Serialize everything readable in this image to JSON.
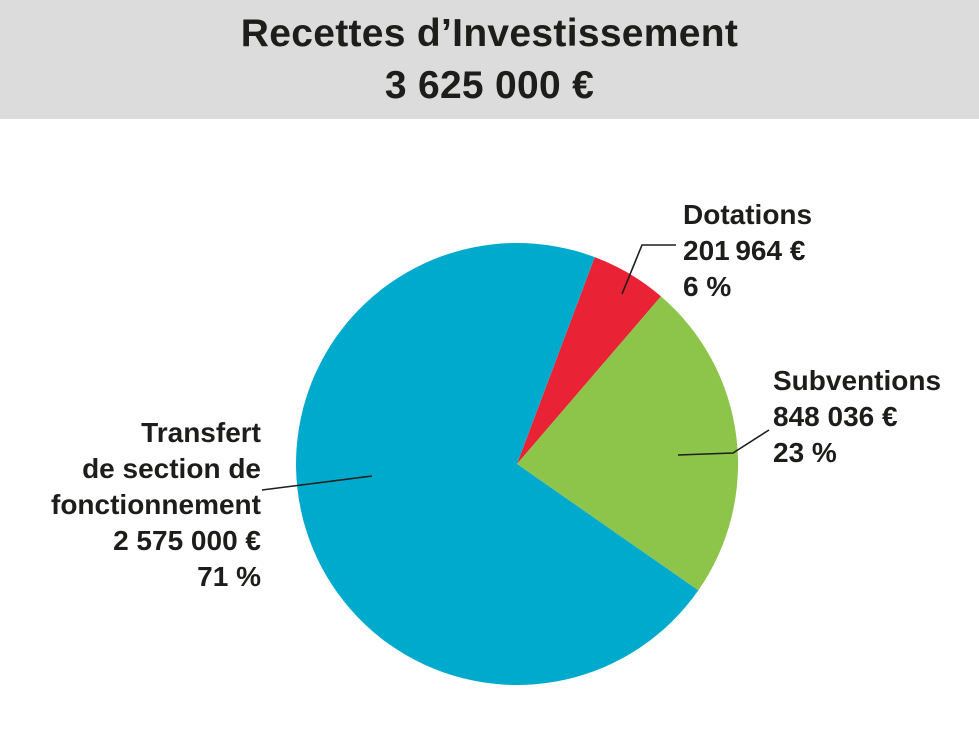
{
  "header": {
    "title": "Recettes d’Investissement",
    "total": "3 625 000 €"
  },
  "chart_data": {
    "type": "pie",
    "title": "Recettes d’Investissement",
    "subtitle": "3 625 000 €",
    "total": 3625000,
    "slices": [
      {
        "key": "dotations",
        "label_lines": [
          "Dotations"
        ],
        "amount": "201 964 €",
        "value": 201964,
        "percent": "6 %",
        "color": "#e92235"
      },
      {
        "key": "subventions",
        "label_lines": [
          "Subventions"
        ],
        "amount": "848 036 €",
        "value": 848036,
        "percent": "23 %",
        "color": "#8dc44a"
      },
      {
        "key": "transfert",
        "label_lines": [
          "Transfert",
          "de section de",
          "fonctionnement"
        ],
        "amount": "2 575 000 €",
        "value": 2575000,
        "percent": "71 %",
        "color": "#00aacc"
      }
    ]
  }
}
